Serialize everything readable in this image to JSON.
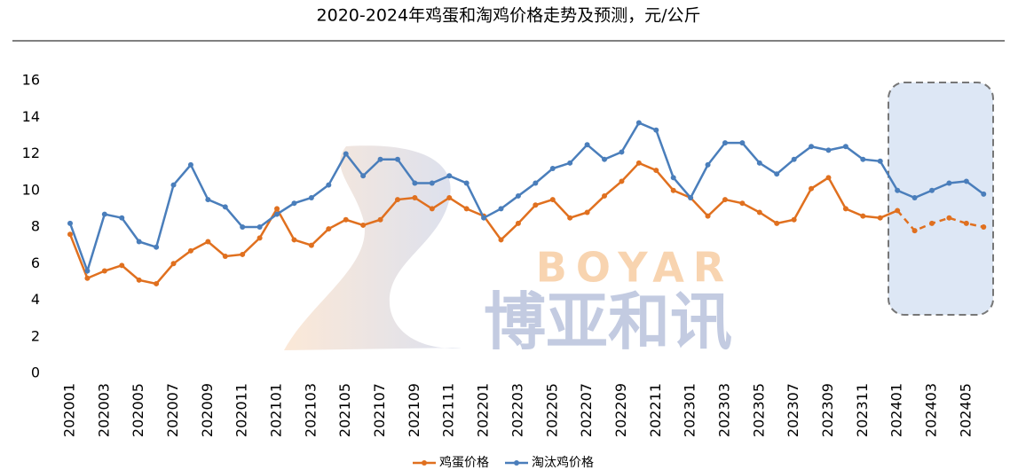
{
  "chart_data": {
    "type": "line",
    "title": "2020-2024年鸡蛋和淘鸡价格走势及预测，元/公斤",
    "categories": [
      "202001",
      null,
      "202003",
      null,
      "202005",
      null,
      "202007",
      null,
      "202009",
      null,
      "202011",
      null,
      "202101",
      null,
      "202103",
      null,
      "202105",
      null,
      "202107",
      null,
      "202109",
      null,
      "202111",
      null,
      "202201",
      null,
      "202203",
      null,
      "202205",
      null,
      "202207",
      null,
      "202209",
      null,
      "202211",
      null,
      "202301",
      null,
      "202303",
      null,
      "202305",
      null,
      "202307",
      null,
      "202309",
      null,
      "202311",
      null,
      "202401",
      null,
      "202403",
      null,
      "202405",
      null
    ],
    "series": [
      {
        "name": "鸡蛋价格",
        "color": "#e0701f",
        "values": [
          7.6,
          5.2,
          5.6,
          5.9,
          5.1,
          4.9,
          6.0,
          6.7,
          7.2,
          6.4,
          6.5,
          7.4,
          9.0,
          7.3,
          7.0,
          7.9,
          8.4,
          8.1,
          8.4,
          9.5,
          9.6,
          9.0,
          9.6,
          9.0,
          8.6,
          7.3,
          8.2,
          9.2,
          9.5,
          8.5,
          8.8,
          9.7,
          10.5,
          11.5,
          11.1,
          10.0,
          9.6,
          8.6,
          9.5,
          9.3,
          8.8,
          8.2,
          8.4,
          10.1,
          10.7,
          9.0,
          8.6,
          8.5,
          8.9,
          7.8,
          8.2,
          8.5,
          8.2,
          8.0
        ]
      },
      {
        "name": "淘汰鸡价格",
        "color": "#4a7ebb",
        "values": [
          8.2,
          5.6,
          8.7,
          8.5,
          7.2,
          6.9,
          10.3,
          11.4,
          9.5,
          9.1,
          8.0,
          8.0,
          8.7,
          9.3,
          9.6,
          10.3,
          12.0,
          10.8,
          11.7,
          11.7,
          10.4,
          10.4,
          10.8,
          10.4,
          8.5,
          9.0,
          9.7,
          10.4,
          11.2,
          11.5,
          12.5,
          11.7,
          12.1,
          13.7,
          13.3,
          10.7,
          9.6,
          11.4,
          12.6,
          12.6,
          11.5,
          10.9,
          11.7,
          12.4,
          12.2,
          12.4,
          11.7,
          11.6,
          10.0,
          9.6,
          10.0,
          10.4,
          10.5,
          9.8
        ]
      }
    ],
    "forecast_start": 48,
    "ylim": [
      0,
      16
    ],
    "yticks": [
      0,
      2,
      4,
      6,
      8,
      10,
      12,
      14,
      16
    ],
    "grid": false,
    "legend": "bottom",
    "watermark": {
      "latin": "BOYAR",
      "chinese": "博亚和讯"
    }
  }
}
